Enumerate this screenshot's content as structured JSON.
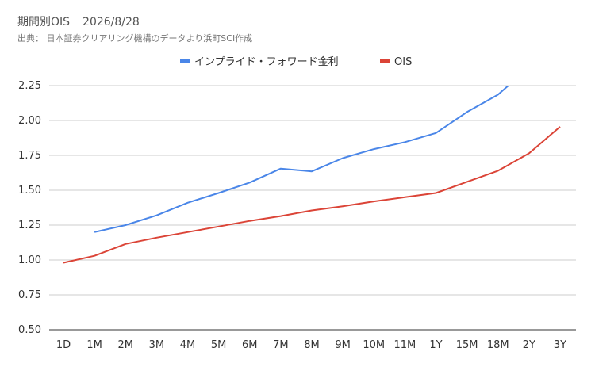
{
  "header": {
    "title": "期間別OIS",
    "date": "2026/8/28",
    "source": "出典： 日本証券クリアリング機構のデータより浜町SCI作成"
  },
  "chart_data": {
    "type": "line",
    "categories": [
      "1D",
      "1M",
      "2M",
      "3M",
      "4M",
      "5M",
      "6M",
      "7M",
      "8M",
      "9M",
      "10M",
      "11M",
      "1Y",
      "15M",
      "18M",
      "2Y",
      "3Y"
    ],
    "series": [
      {
        "name": "インプライド・フォワード金利",
        "color": "#4a86e8",
        "values": [
          null,
          1.2,
          1.25,
          1.32,
          1.41,
          1.48,
          1.555,
          1.655,
          1.635,
          1.73,
          1.795,
          1.845,
          1.91,
          2.06,
          2.185,
          2.38,
          null
        ]
      },
      {
        "name": "OIS",
        "color": "#db4437",
        "values": [
          0.98,
          1.03,
          1.115,
          1.16,
          1.2,
          1.24,
          1.28,
          1.315,
          1.355,
          1.385,
          1.42,
          1.45,
          1.48,
          1.56,
          1.64,
          1.765,
          1.955
        ]
      }
    ],
    "ylim": [
      0.5,
      2.25
    ],
    "yticks": [
      "0.50",
      "0.75",
      "1.00",
      "1.25",
      "1.50",
      "1.75",
      "2.00",
      "2.25"
    ],
    "grid": true,
    "legend_position": "top-center"
  }
}
